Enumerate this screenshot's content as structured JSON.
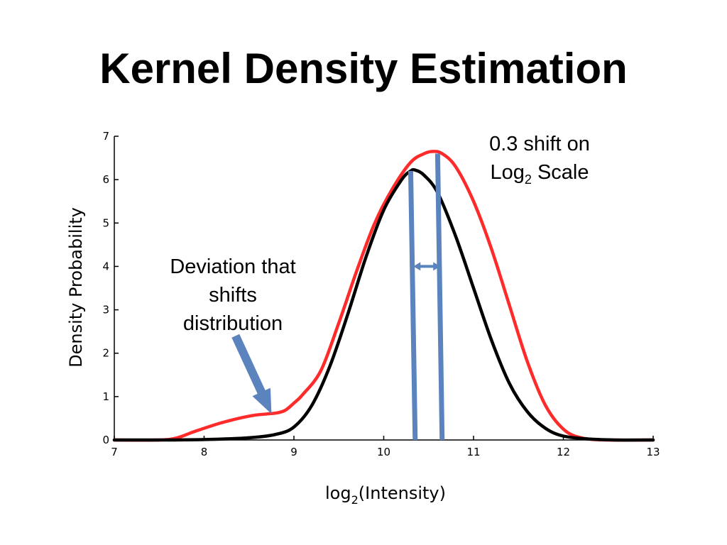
{
  "slide": {
    "title": "Kernel Density Estimation"
  },
  "annotations": {
    "shift_line1": "0.3 shift on",
    "shift_line2_prefix": "Log",
    "shift_line2_sub": "2",
    "shift_line2_suffix": " Scale",
    "deviation_line1": "Deviation that",
    "deviation_line2": "shifts",
    "deviation_line3": "distribution"
  },
  "chart_data": {
    "type": "line",
    "xlabel_prefix": "log",
    "xlabel_sub": "2",
    "xlabel_suffix": "(Intensity)",
    "ylabel": "Density Probability",
    "xlim": [
      7,
      13
    ],
    "ylim": [
      0,
      7
    ],
    "xticks": [
      7,
      8,
      9,
      10,
      11,
      12,
      13
    ],
    "yticks": [
      0,
      1,
      2,
      3,
      4,
      5,
      6,
      7
    ],
    "grid": false,
    "series": [
      {
        "color": "#000000",
        "x": [
          7.0,
          7.5,
          8.0,
          8.5,
          8.8,
          9.0,
          9.2,
          9.4,
          9.6,
          9.8,
          10.0,
          10.2,
          10.3,
          10.35,
          10.45,
          10.6,
          10.8,
          11.0,
          11.2,
          11.4,
          11.6,
          11.8,
          12.0,
          12.3,
          12.6,
          13.0
        ],
        "y": [
          0,
          0,
          0.01,
          0.05,
          0.13,
          0.3,
          0.8,
          1.7,
          2.9,
          4.2,
          5.3,
          6.0,
          6.2,
          6.22,
          6.1,
          5.7,
          4.7,
          3.5,
          2.3,
          1.3,
          0.65,
          0.27,
          0.09,
          0.02,
          0,
          0
        ]
      },
      {
        "color": "#ff2a2a",
        "x": [
          7.0,
          7.5,
          7.7,
          7.9,
          8.2,
          8.5,
          8.7,
          8.8,
          8.9,
          9.0,
          9.1,
          9.3,
          9.5,
          9.7,
          9.9,
          10.1,
          10.3,
          10.45,
          10.55,
          10.65,
          10.8,
          11.0,
          11.2,
          11.4,
          11.6,
          11.8,
          12.0,
          12.2,
          12.5,
          13.0
        ],
        "y": [
          0,
          0,
          0.05,
          0.2,
          0.4,
          0.55,
          0.6,
          0.62,
          0.68,
          0.85,
          1.05,
          1.6,
          2.7,
          3.9,
          5.0,
          5.8,
          6.4,
          6.6,
          6.65,
          6.6,
          6.3,
          5.5,
          4.4,
          3.1,
          1.8,
          0.8,
          0.25,
          0.05,
          0,
          0
        ]
      }
    ],
    "markers": {
      "color": "#5b84bf",
      "black_peak_line": {
        "x": [
          10.3,
          10.35
        ],
        "y": [
          6.2,
          0
        ]
      },
      "red_peak_line": {
        "x": [
          10.6,
          10.65
        ],
        "y": [
          6.6,
          0
        ]
      },
      "shift_arrow": {
        "x1": 10.33,
        "x2": 10.63,
        "y": 4.0
      },
      "deviation_arrow": {
        "from": [
          8.35,
          2.4
        ],
        "to": [
          8.75,
          0.6
        ]
      }
    }
  }
}
